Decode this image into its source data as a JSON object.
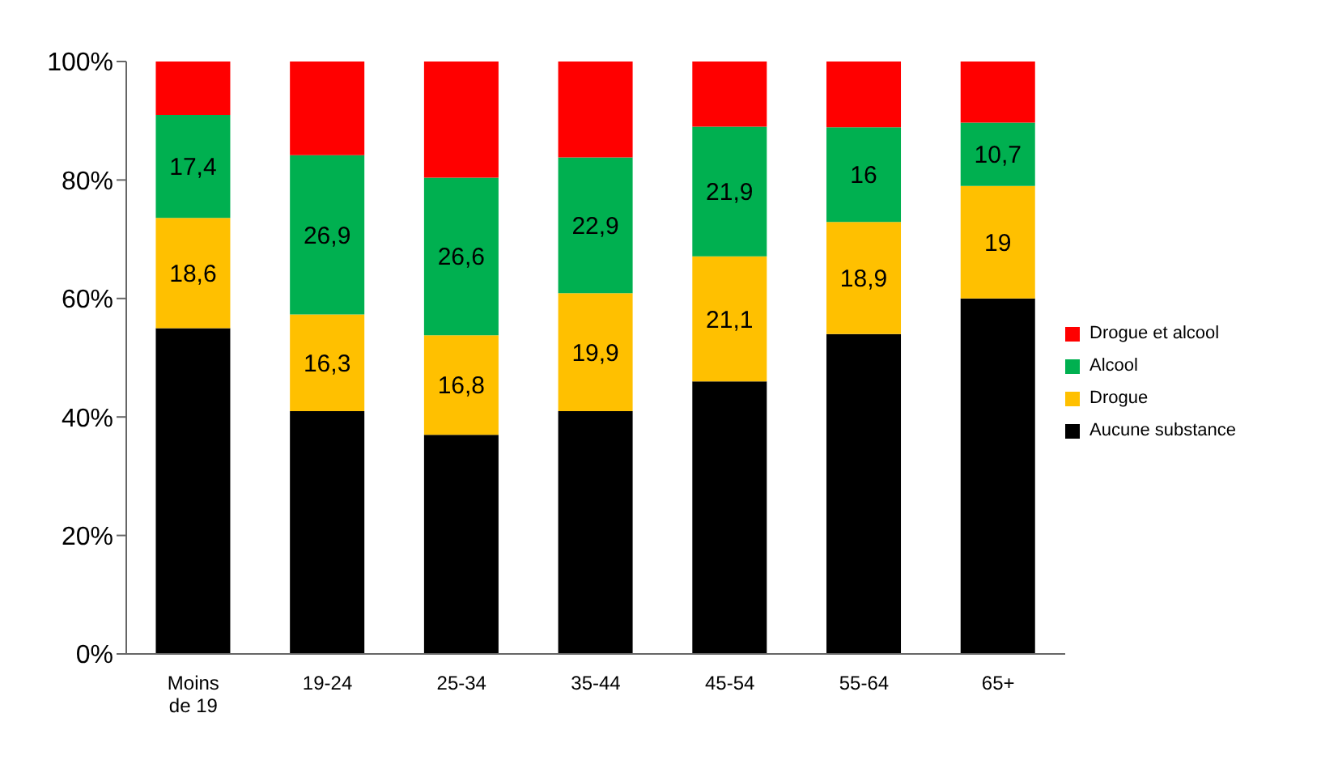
{
  "chart_data": {
    "type": "bar",
    "stacked": true,
    "categories": [
      "Moins de 19",
      "19-24",
      "25-34",
      "35-44",
      "45-54",
      "55-64",
      "65+"
    ],
    "series": [
      {
        "name": "Aucune substance",
        "color": "#000000",
        "values": [
          55,
          41,
          37,
          41,
          46,
          54,
          60
        ]
      },
      {
        "name": "Drogue",
        "color": "#ffc000",
        "values": [
          18.6,
          16.3,
          16.8,
          19.9,
          21.1,
          18.9,
          19
        ],
        "value_labels": [
          "18,6",
          "16,3",
          "16,8",
          "19,9",
          "21,1",
          "18,9",
          "19"
        ]
      },
      {
        "name": "Alcool",
        "color": "#00b050",
        "values": [
          17.4,
          26.9,
          26.6,
          22.9,
          21.9,
          16,
          10.7
        ],
        "value_labels": [
          "17,4",
          "26,9",
          "26,6",
          "22,9",
          "21,9",
          "16",
          "10,7"
        ]
      },
      {
        "name": "Drogue et alcool",
        "color": "#ff0000",
        "values": [
          9,
          15.8,
          19.6,
          16.2,
          11,
          11.1,
          10.3
        ]
      }
    ],
    "ylim": [
      0,
      100
    ],
    "yticks": [
      {
        "value": 0,
        "label": "0%"
      },
      {
        "value": 20,
        "label": "20%"
      },
      {
        "value": 40,
        "label": "40%"
      },
      {
        "value": 60,
        "label": "60%"
      },
      {
        "value": 80,
        "label": "80%"
      },
      {
        "value": 100,
        "label": "100%"
      }
    ],
    "legend": "right"
  }
}
